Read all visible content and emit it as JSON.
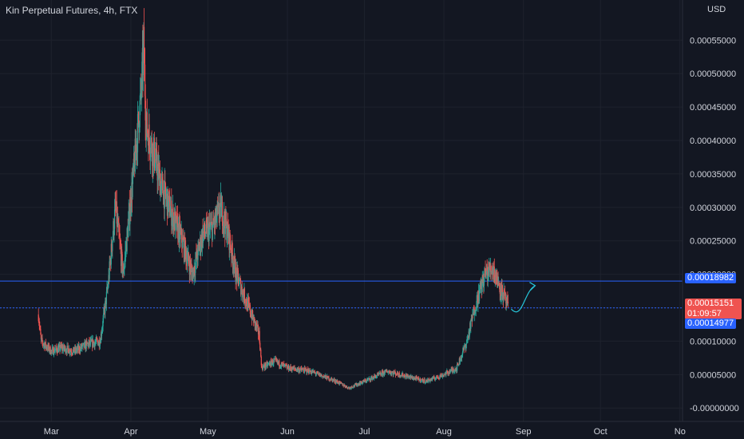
{
  "header": {
    "title": "Kin Perpetual Futures, 4h, FTX",
    "currency": "USD"
  },
  "colors": {
    "up": "#26a69a",
    "down": "#ef5350",
    "hline": "#2962ff",
    "bg": "#131722",
    "grid": "#1e222d",
    "text": "#d1d4dc",
    "drawing": "#26c6da"
  },
  "price_tags": {
    "upper_line": "0.00018982",
    "current_price": "0.00015151",
    "countdown": "01:09:57",
    "lower_line": "0.00014977"
  },
  "chart_data": {
    "type": "candlestick",
    "title": "Kin Perpetual Futures, 4h, FTX",
    "y_axis_labels": [
      "0.00055000",
      "0.00050000",
      "0.00045000",
      "0.00040000",
      "0.00035000",
      "0.00030000",
      "0.00025000",
      "0.00020000",
      "0.00015000",
      "0.00010000",
      "0.00005000",
      "-0.00000000"
    ],
    "y_ticks": [
      0.00055,
      0.0005,
      0.00045,
      0.0004,
      0.00035,
      0.0003,
      0.00025,
      0.0002,
      0.00015,
      0.0001,
      5e-05,
      0
    ],
    "ylim": [
      -2e-05,
      0.00061
    ],
    "x_axis_labels": [
      "Mar",
      "Apr",
      "May",
      "Jun",
      "Jul",
      "Aug",
      "Sep",
      "Oct",
      "No"
    ],
    "x_ticks": [
      "2022-03-01",
      "2022-04-01",
      "2022-05-01",
      "2022-06-01",
      "2022-07-01",
      "2022-08-01",
      "2022-09-01",
      "2022-10-01",
      "2022-11-01"
    ],
    "x_range": [
      "2022-02-09",
      "2022-11-02"
    ],
    "horizontal_lines": [
      0.00018982,
      0.00014977
    ],
    "current_price": 0.00015151,
    "price_path": [
      [
        "2022-02-24",
        0.00014
      ],
      [
        "2022-02-25",
        0.0001
      ],
      [
        "2022-03-01",
        8.5e-05
      ],
      [
        "2022-03-05",
        9e-05
      ],
      [
        "2022-03-10",
        8.5e-05
      ],
      [
        "2022-03-15",
        9.5e-05
      ],
      [
        "2022-03-20",
        0.0001
      ],
      [
        "2022-03-23",
        0.00018
      ],
      [
        "2022-03-26",
        0.0003
      ],
      [
        "2022-03-29",
        0.0002
      ],
      [
        "2022-04-02",
        0.00035
      ],
      [
        "2022-04-05",
        0.00047
      ],
      [
        "2022-04-06",
        0.00054
      ],
      [
        "2022-04-07",
        0.00042
      ],
      [
        "2022-04-10",
        0.00038
      ],
      [
        "2022-04-13",
        0.00033
      ],
      [
        "2022-04-17",
        0.00029
      ],
      [
        "2022-04-21",
        0.00025
      ],
      [
        "2022-04-25",
        0.0002
      ],
      [
        "2022-04-29",
        0.00026
      ],
      [
        "2022-05-03",
        0.00027
      ],
      [
        "2022-05-06",
        0.0003
      ],
      [
        "2022-05-09",
        0.00026
      ],
      [
        "2022-05-12",
        0.0002
      ],
      [
        "2022-05-15",
        0.00017
      ],
      [
        "2022-05-18",
        0.00014
      ],
      [
        "2022-05-21",
        0.00011
      ],
      [
        "2022-05-22",
        6e-05
      ],
      [
        "2022-05-27",
        7e-05
      ],
      [
        "2022-06-01",
        6e-05
      ],
      [
        "2022-06-10",
        5.5e-05
      ],
      [
        "2022-06-20",
        4e-05
      ],
      [
        "2022-06-25",
        3e-05
      ],
      [
        "2022-07-01",
        4e-05
      ],
      [
        "2022-07-10",
        5.5e-05
      ],
      [
        "2022-07-20",
        4.5e-05
      ],
      [
        "2022-07-25",
        4e-05
      ],
      [
        "2022-08-01",
        5e-05
      ],
      [
        "2022-08-06",
        6e-05
      ],
      [
        "2022-08-10",
        0.0001
      ],
      [
        "2022-08-13",
        0.00015
      ],
      [
        "2022-08-17",
        0.0002
      ],
      [
        "2022-08-20",
        0.00021
      ],
      [
        "2022-08-23",
        0.00018
      ],
      [
        "2022-08-26",
        0.000151
      ]
    ]
  }
}
